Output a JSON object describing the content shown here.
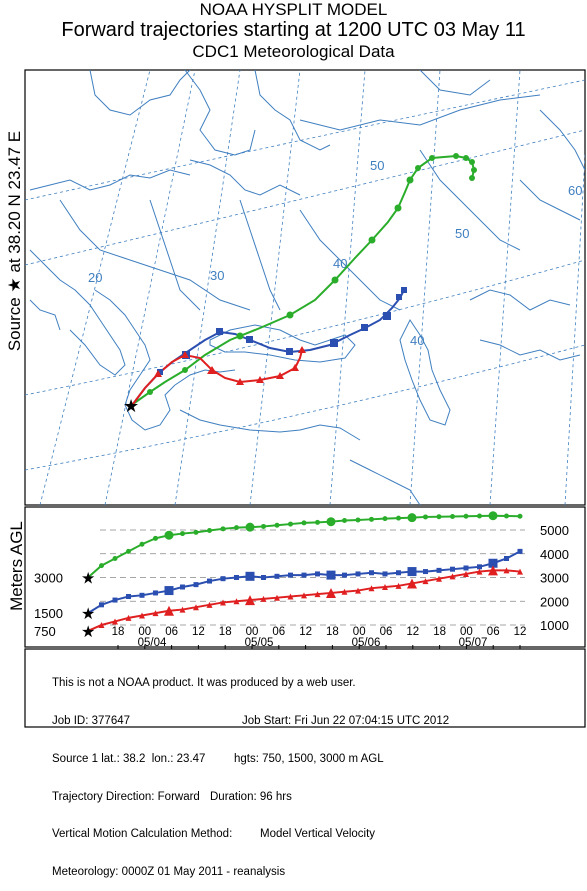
{
  "header": {
    "line1": "NOAA HYSPLIT MODEL",
    "line2": "Forward trajectories starting at 1200 UTC 03 May 11",
    "line3": "CDC1 Meteorological Data"
  },
  "side_labels": {
    "source": "Source ★ at 38.20 N 23.47 E",
    "height_axis": "Meters AGL"
  },
  "map": {
    "grid_labels": [
      "20",
      "30",
      "40",
      "50",
      "40",
      "50",
      "60"
    ],
    "source_marker": "★"
  },
  "chart_data": {
    "type": "line",
    "ylabel": "Meters AGL",
    "start_heights": [
      "3000",
      "1500",
      "750"
    ],
    "right_ticks": [
      "5000",
      "4000",
      "3000",
      "2000",
      "1000"
    ],
    "hour_ticks": [
      "18",
      "00",
      "06",
      "12",
      "18",
      "00",
      "06",
      "12",
      "18",
      "00",
      "06",
      "12",
      "18",
      "00",
      "06",
      "12"
    ],
    "date_ticks": [
      "05/04",
      "05/05",
      "05/06",
      "05/07"
    ],
    "series": [
      {
        "color": "#2aad2a",
        "marker": "circle",
        "values": [
          3000,
          3500,
          3800,
          4100,
          4400,
          4650,
          4780,
          4850,
          4900,
          4980,
          5050,
          5100,
          5120,
          5150,
          5200,
          5250,
          5300,
          5320,
          5350,
          5400,
          5420,
          5450,
          5480,
          5500,
          5520,
          5550,
          5560,
          5570,
          5580,
          5590,
          5600,
          5590,
          5580
        ]
      },
      {
        "color": "#2b4fb0",
        "marker": "square",
        "values": [
          1500,
          1850,
          2050,
          2200,
          2250,
          2350,
          2450,
          2600,
          2700,
          2850,
          2950,
          3000,
          3050,
          3000,
          3050,
          3100,
          3100,
          3150,
          3100,
          3100,
          3150,
          3200,
          3150,
          3200,
          3250,
          3250,
          3300,
          3350,
          3400,
          3450,
          3600,
          3800,
          4100
        ]
      },
      {
        "color": "#e02020",
        "marker": "triangle",
        "values": [
          750,
          1000,
          1150,
          1300,
          1400,
          1500,
          1600,
          1650,
          1750,
          1850,
          1950,
          2000,
          2050,
          2100,
          2150,
          2200,
          2250,
          2300,
          2350,
          2400,
          2450,
          2550,
          2600,
          2650,
          2750,
          2850,
          2950,
          3050,
          3150,
          3250,
          3300,
          3300,
          3250
        ]
      }
    ]
  },
  "footer": {
    "line1": "This is not a NOAA product. It was produced by a web user.",
    "job_id": "Job ID: 377647",
    "job_start": "Job Start: Fri Jun 22 07:04:15 UTC 2012",
    "source_loc": "Source 1 lat.: 38.2  lon.: 23.47",
    "hgts": "hgts: 750, 1500, 3000 m AGL",
    "direction": "Trajectory Direction: Forward",
    "duration": "Duration: 96 hrs",
    "vmethod": "Vertical Motion Calculation Method:",
    "vmodel": "Model Vertical Velocity",
    "meteo": "Meteorology: 0000Z 01 May 2011 - reanalysis"
  },
  "colors": {
    "coast": "#3f7fc0",
    "grid": "#3f7fc0",
    "green": "#2aad2a",
    "blue": "#2b4fb0",
    "red": "#e02020"
  }
}
